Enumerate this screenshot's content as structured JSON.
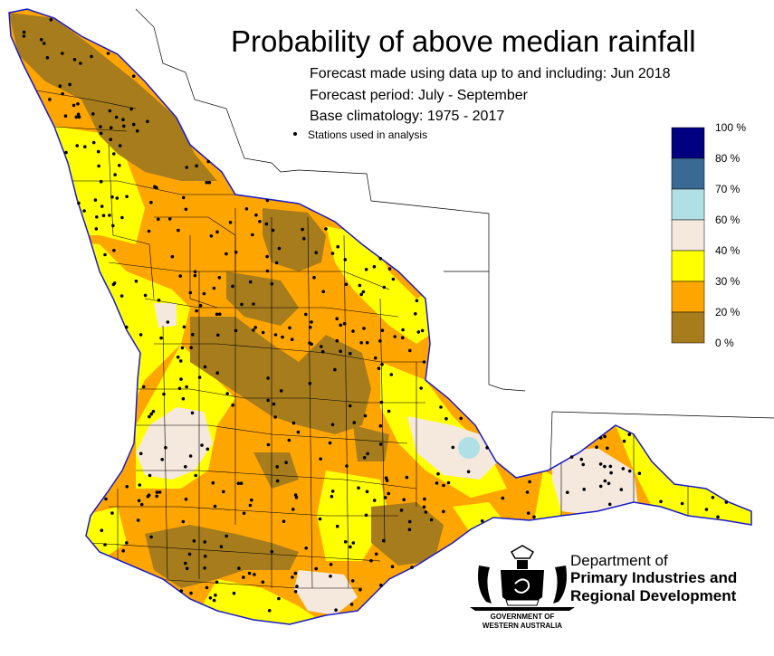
{
  "title": "Probability of above median rainfall",
  "info": {
    "forecast_made": "Forecast made using data up to and including: Jun 2018",
    "forecast_period": "Forecast period: July - September",
    "base_climatology": "Base climatology: 1975 - 2017",
    "stations_note": "Stations used in analysis"
  },
  "legend": {
    "items": [
      {
        "label": "100 %",
        "color": "#000080"
      },
      {
        "label": "80 %",
        "color": "#3a6a93"
      },
      {
        "label": "70 %",
        "color": "#b0dfe5"
      },
      {
        "label": "60 %",
        "color": "#f5e8dc"
      },
      {
        "label": "40 %",
        "color": "#ffff00"
      },
      {
        "label": "30 %",
        "color": "#ffa500"
      },
      {
        "label": "20 %",
        "color": "#a67c1c"
      },
      {
        "label": "0 %",
        "color": null
      }
    ]
  },
  "branding": {
    "department_line1": "Department of",
    "department_line2": "Primary Industries and",
    "department_line3": "Regional Development",
    "government_line1": "GOVERNMENT OF",
    "government_line2": "WESTERN AUSTRALIA"
  },
  "colors": {
    "coast": "#1a1acc",
    "boundary": "#000000",
    "background": "#ffffff"
  }
}
